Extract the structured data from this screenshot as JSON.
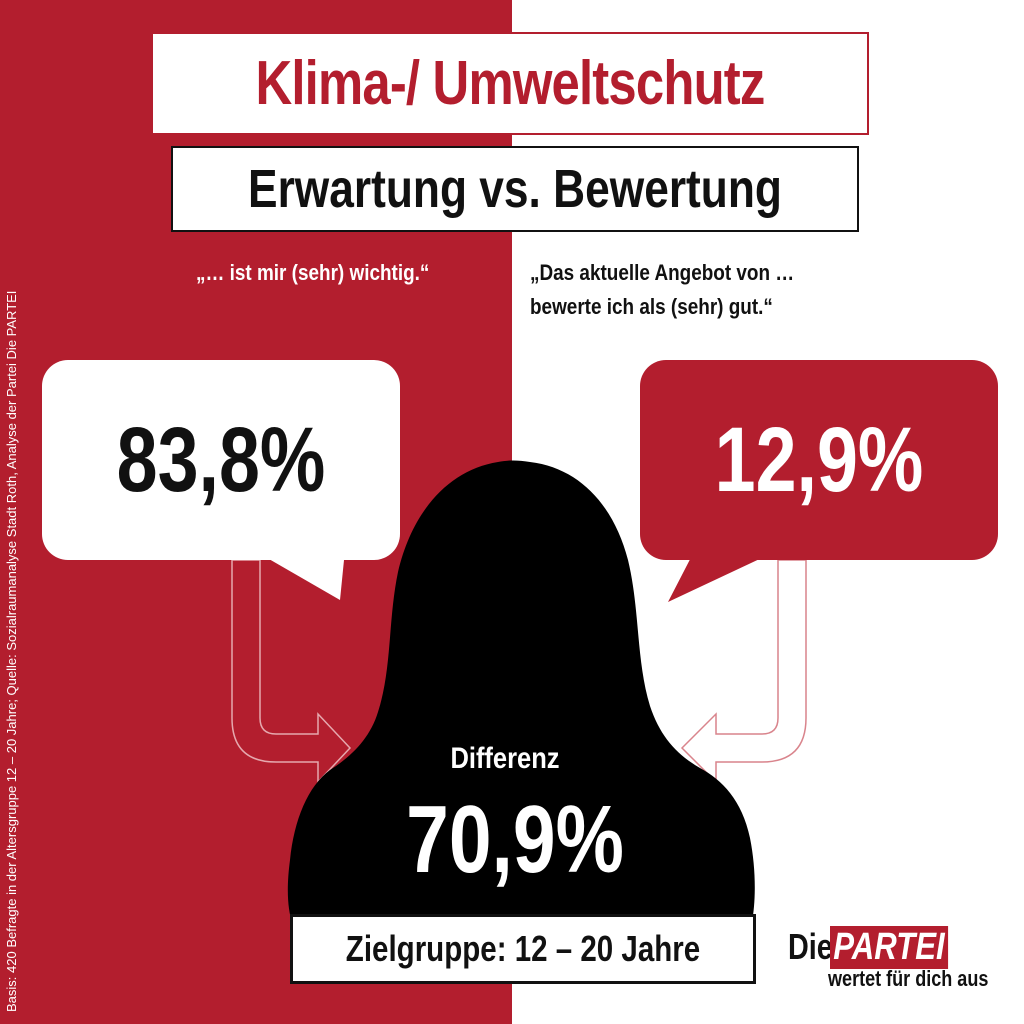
{
  "colors": {
    "brand_red": "#b31e2e",
    "black": "#111111",
    "white": "#ffffff"
  },
  "title": "Klima-/ Umweltschutz",
  "subtitle": "Erwartung vs. Bewertung",
  "left": {
    "quote": "„… ist mir (sehr) wichtig.“",
    "value": "83,8%"
  },
  "right": {
    "quote_line1": "„Das aktuelle Angebot von …",
    "quote_line2": "bewerte ich als (sehr) gut.“",
    "value": "12,9%"
  },
  "difference": {
    "label": "Differenz",
    "value": "70,9%"
  },
  "target_group": "Zielgruppe: 12 – 20 Jahre",
  "source": "Basis: 420 Befragte in der Altersgruppe  12 – 20 Jahre; Quelle: Sozialraumanalyse  Stadt Roth, Analyse der Partei Die PARTEI",
  "logo": {
    "die": "Die",
    "partei": "PARTEI",
    "tagline": "wertet für dich aus"
  }
}
